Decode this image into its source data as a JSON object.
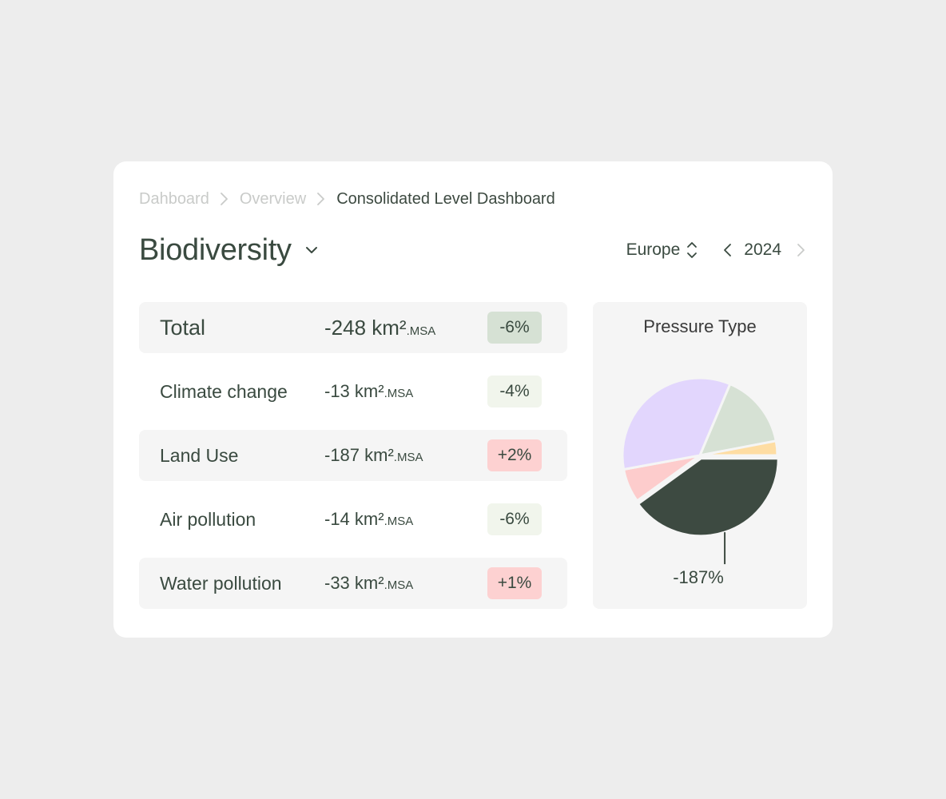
{
  "breadcrumb": {
    "items": [
      {
        "label": "Dahboard"
      },
      {
        "label": "Overview"
      },
      {
        "label": "Consolidated Level Dashboard"
      }
    ]
  },
  "header": {
    "title": "Biodiversity",
    "region": "Europe",
    "year": "2024"
  },
  "metrics": {
    "rows": [
      {
        "label": "Total",
        "value": "-248 km²",
        "unit": ".MSA",
        "change": "-6%",
        "badge_color": "#d6e1d4"
      },
      {
        "label": "Climate change",
        "value": "-13 km²",
        "unit": ".MSA",
        "change": "-4%",
        "badge_color": "#f1f5ec"
      },
      {
        "label": "Land Use",
        "value": "-187 km²",
        "unit": ".MSA",
        "change": "+2%",
        "badge_color": "#fdd1d1"
      },
      {
        "label": "Air pollution",
        "value": "-14 km²",
        "unit": ".MSA",
        "change": "-6%",
        "badge_color": "#f1f5ec"
      },
      {
        "label": "Water pollution",
        "value": "-33 km²",
        "unit": ".MSA",
        "change": "+1%",
        "badge_color": "#fdd1d1"
      }
    ]
  },
  "chart_data": {
    "type": "pie",
    "title": "Pressure Type",
    "slices": [
      {
        "value": 187,
        "color": "#3d4a41",
        "explode": true
      },
      {
        "value": 33,
        "color": "#fdcccc"
      },
      {
        "value": 160,
        "color": "#e2d6fd"
      },
      {
        "value": 73,
        "color": "#d6e1d4"
      },
      {
        "value": 14,
        "color": "#fedda3"
      }
    ],
    "callout": "-187%"
  },
  "icons": {
    "breadcrumb_separator": "chevron-right-icon",
    "title_dropdown": "chevron-down-icon",
    "region_select": "updown-icon",
    "prev_year": "chevron-left-icon",
    "next_year": "chevron-right-icon"
  }
}
